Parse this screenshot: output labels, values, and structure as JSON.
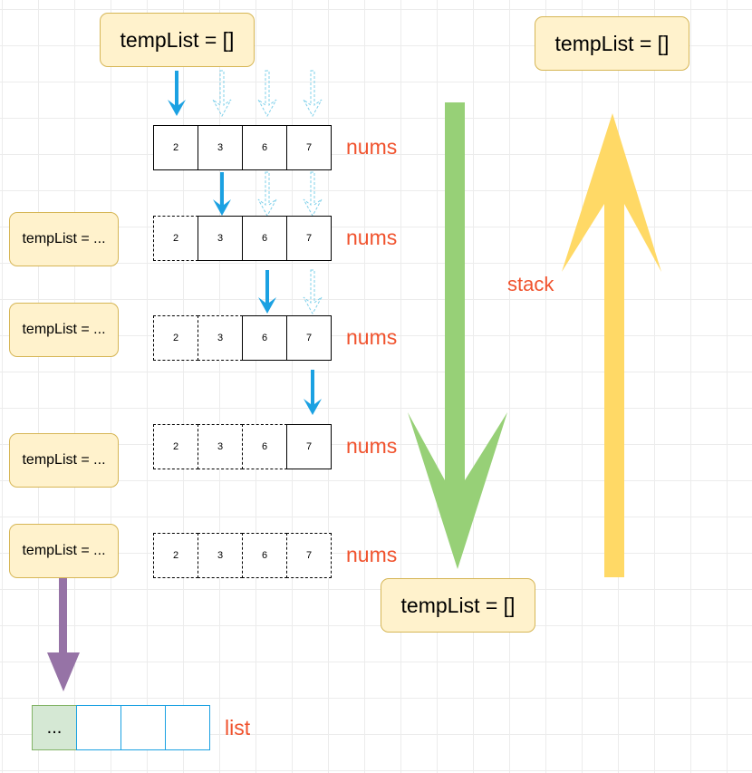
{
  "top_box": "tempList = []",
  "top_right_box": "tempList = []",
  "bottom_box": "tempList = []",
  "side_boxes": [
    "tempList = ...",
    "tempList = ...",
    "tempList = ...",
    "tempList = ..."
  ],
  "nums_rows": [
    {
      "values": [
        "2",
        "3",
        "6",
        "7"
      ],
      "dashed": [
        false,
        false,
        false,
        false
      ],
      "label": "nums"
    },
    {
      "values": [
        "2",
        "3",
        "6",
        "7"
      ],
      "dashed": [
        true,
        false,
        false,
        false
      ],
      "label": "nums"
    },
    {
      "values": [
        "2",
        "3",
        "6",
        "7"
      ],
      "dashed": [
        true,
        true,
        false,
        false
      ],
      "label": "nums"
    },
    {
      "values": [
        "2",
        "3",
        "6",
        "7"
      ],
      "dashed": [
        true,
        true,
        true,
        false
      ],
      "label": "nums"
    },
    {
      "values": [
        "2",
        "3",
        "6",
        "7"
      ],
      "dashed": [
        true,
        true,
        true,
        true
      ],
      "label": "nums"
    }
  ],
  "stack_label": "stack",
  "list": {
    "cells": [
      "...",
      "",
      "",
      ""
    ],
    "label": "list"
  },
  "colors": {
    "blue_arrow": "#1ba1e2",
    "green_arrow": "#97d077",
    "yellow_arrow": "#ffd966",
    "purple_arrow": "#9673a6",
    "label": "#f0522d",
    "note_fill": "#fff2cc",
    "list_first": "#d5e8d4"
  }
}
